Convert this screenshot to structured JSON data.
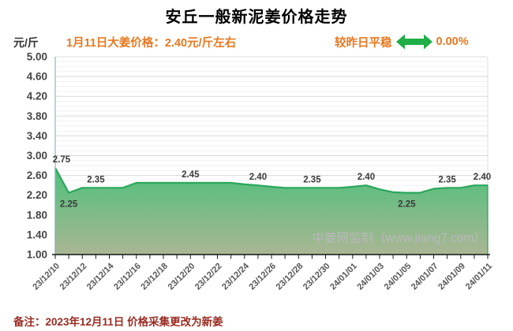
{
  "title": "安丘一般新泥姜价格走势",
  "header": {
    "unit_label": "元/斤",
    "price_note": "1月11日大姜价格：2.40元/斤左右",
    "trend_label": "较昨日平稳",
    "trend_value": "0.00%",
    "trend_icon": "left-right-arrow-icon",
    "trend_icon_color": "#1fae47",
    "accent_orange": "#e8781f"
  },
  "watermark": "中姜网监制（www.jiang7.com）",
  "footer_note": "备注：2023年12月11日 价格采集更改为新姜",
  "chart_data": {
    "type": "area",
    "title": "安丘一般新泥姜价格走势",
    "ylabel": "元/斤",
    "xlabel": "",
    "grid": true,
    "legend": false,
    "ylim": [
      1.0,
      5.0
    ],
    "y_ticks": [
      5.0,
      4.6,
      4.2,
      3.8,
      3.4,
      3.0,
      2.6,
      2.2,
      1.8,
      1.4,
      1.0
    ],
    "y_minor_step": 0.1,
    "x_label_every": 2,
    "x": [
      "23/12/10",
      "23/12/11",
      "23/12/12",
      "23/12/13",
      "23/12/14",
      "23/12/15",
      "23/12/16",
      "23/12/17",
      "23/12/18",
      "23/12/19",
      "23/12/20",
      "23/12/21",
      "23/12/22",
      "23/12/23",
      "23/12/24",
      "23/12/25",
      "23/12/26",
      "23/12/27",
      "23/12/28",
      "23/12/29",
      "23/12/30",
      "23/12/31",
      "24/01/01",
      "24/01/02",
      "24/01/03",
      "24/01/04",
      "24/01/05",
      "24/01/06",
      "24/01/07",
      "24/01/08",
      "24/01/09",
      "24/01/10",
      "24/01/11"
    ],
    "values": [
      2.75,
      2.25,
      2.35,
      2.35,
      2.35,
      2.35,
      2.45,
      2.45,
      2.45,
      2.45,
      2.45,
      2.45,
      2.45,
      2.45,
      2.42,
      2.4,
      2.37,
      2.35,
      2.35,
      2.35,
      2.35,
      2.35,
      2.37,
      2.4,
      2.32,
      2.26,
      2.25,
      2.25,
      2.33,
      2.35,
      2.35,
      2.4,
      2.4
    ],
    "point_labels": [
      {
        "index": 0,
        "text": "2.75",
        "position": "above"
      },
      {
        "index": 1,
        "text": "2.25",
        "position": "below"
      },
      {
        "index": 3,
        "text": "2.35",
        "position": "above"
      },
      {
        "index": 10,
        "text": "2.45",
        "position": "above"
      },
      {
        "index": 15,
        "text": "2.40",
        "position": "above"
      },
      {
        "index": 19,
        "text": "2.35",
        "position": "above"
      },
      {
        "index": 23,
        "text": "2.40",
        "position": "above"
      },
      {
        "index": 26,
        "text": "2.25",
        "position": "below"
      },
      {
        "index": 29,
        "text": "2.35",
        "position": "above"
      },
      {
        "index": 32,
        "text": "2.40",
        "position": "above"
      }
    ],
    "line_color": "#2aa75c",
    "fill_top_color": "#4ec07b",
    "fill_bottom_color": "#aab694",
    "grid_minor_color": "#f1f1f1",
    "grid_major_color": "#d8d8d8",
    "y_axis_color": "#8fb3c9",
    "x_axis_color": "#1a1a1a"
  }
}
